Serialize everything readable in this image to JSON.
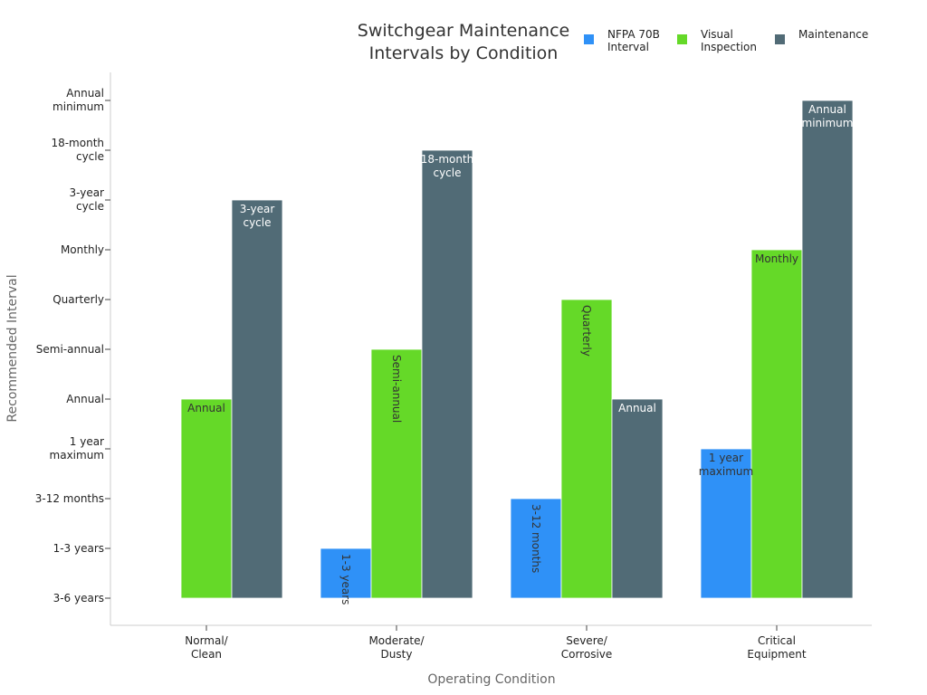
{
  "chart_data": {
    "type": "bar",
    "title": "Switchgear Maintenance Intervals by Condition",
    "title_lines": [
      "Switchgear Maintenance",
      "Intervals by Condition"
    ],
    "xlabel": "Operating Condition",
    "ylabel": "Recommended Interval",
    "categories": [
      "Normal/\nClean",
      "Moderate/\nDusty",
      "Severe/\nCorrosive",
      "Critical\nEquipment"
    ],
    "y_ticks": [
      "3-6 years",
      "1-3 years",
      "3-12 months",
      "1 year\nmaximum",
      "Annual",
      "Semi-annual",
      "Quarterly",
      "Monthly",
      "3-year\ncycle",
      "18-month\ncycle",
      "Annual\nminimum"
    ],
    "ylim": [
      0,
      10.8
    ],
    "grid": false,
    "legend_position": "top-right",
    "series": [
      {
        "name": "NFPA 70B\nInterval",
        "color": "#2f91f7",
        "label_color": "#333333",
        "values": [
          0,
          1,
          2,
          3
        ],
        "labels": [
          "",
          "1-3 years",
          "3-12 months",
          "1 year\nmaximum"
        ]
      },
      {
        "name": "Visual\nInspection",
        "color": "#65d928",
        "label_color": "#333333",
        "values": [
          4,
          5,
          6,
          7
        ],
        "labels": [
          "Annual",
          "Semi-annual",
          "Quarterly",
          "Monthly"
        ]
      },
      {
        "name": "Maintenance",
        "color": "#516b76",
        "label_color": "#ffffff",
        "values": [
          8,
          9,
          4,
          10
        ],
        "labels": [
          "3-year\ncycle",
          "18-month\ncycle",
          "Annual",
          "Annual\nminimum"
        ]
      }
    ]
  }
}
